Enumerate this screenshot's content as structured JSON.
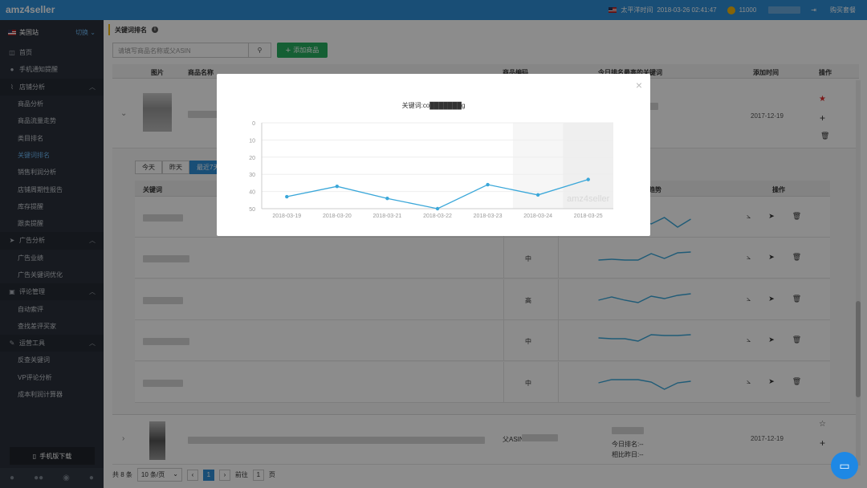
{
  "app": {
    "logo": "amz4seller"
  },
  "topbar": {
    "timezone_label": "太平洋时间",
    "datetime": "2018-03-26 02:41:47",
    "coins": "11000",
    "buy_label": "购买套餐"
  },
  "sidebar": {
    "site": "美国站",
    "switch_label": "切换",
    "items": [
      {
        "label": "首页",
        "icon": "home-icon",
        "glyph": "◫",
        "type": "top"
      },
      {
        "label": "手机通知提醒",
        "icon": "chat-icon",
        "glyph": "●",
        "type": "top"
      },
      {
        "label": "店铺分析",
        "icon": "chart-icon",
        "glyph": "⌇",
        "type": "section"
      },
      {
        "label": "商品分析",
        "type": "sub"
      },
      {
        "label": "商品流量走势",
        "type": "sub"
      },
      {
        "label": "类目排名",
        "type": "sub"
      },
      {
        "label": "关键词排名",
        "type": "sub",
        "active": true
      },
      {
        "label": "销售利润分析",
        "type": "sub"
      },
      {
        "label": "店铺周期性报告",
        "type": "sub"
      },
      {
        "label": "库存提醒",
        "type": "sub"
      },
      {
        "label": "跟卖提醒",
        "type": "sub"
      },
      {
        "label": "广告分析",
        "icon": "send-icon",
        "glyph": "➤",
        "type": "section"
      },
      {
        "label": "广告业绩",
        "type": "sub"
      },
      {
        "label": "广告关键词优化",
        "type": "sub"
      },
      {
        "label": "评论管理",
        "icon": "store-icon",
        "glyph": "▣",
        "type": "section"
      },
      {
        "label": "自动索评",
        "type": "sub"
      },
      {
        "label": "查找差评买家",
        "type": "sub"
      },
      {
        "label": "运营工具",
        "icon": "wrench-icon",
        "glyph": "✎",
        "type": "section"
      },
      {
        "label": "反查关键词",
        "type": "sub"
      },
      {
        "label": "VP评论分析",
        "type": "sub"
      },
      {
        "label": "成本利润计算器",
        "type": "sub"
      }
    ],
    "app_download": "手机版下载"
  },
  "main": {
    "title": "关键词排名",
    "search_placeholder": "请填写商品名称或父ASIN",
    "add_button": "添加商品",
    "columns": {
      "image": "图片",
      "name": "商品名称",
      "code": "商品编码",
      "keywords": "今日排名最高的关键词",
      "added": "添加时间",
      "ops": "操作"
    },
    "products": [
      {
        "added": "2017-12-19"
      },
      {
        "added": "2017-12-19",
        "code_prefix": "父ASIN",
        "today_rank": "今日排名:--",
        "compare": "相比昨日:--"
      }
    ],
    "range_tabs": [
      "今天",
      "昨天",
      "最近7天"
    ],
    "kw_columns": {
      "keyword": "关键词",
      "trend": "趋势",
      "ops": "操作"
    },
    "kw_rows": [
      {
        "level": "",
        "spark": [
          14,
          14,
          15,
          15,
          22,
          14,
          26,
          16
        ]
      },
      {
        "level": "中",
        "spark": [
          16,
          15,
          16,
          16,
          8,
          14,
          7,
          6
        ]
      },
      {
        "level": "高",
        "spark": [
          14,
          10,
          14,
          17,
          9,
          12,
          8,
          6
        ]
      },
      {
        "level": "中",
        "spark": [
          10,
          11,
          11,
          14,
          6,
          7,
          7,
          6
        ]
      },
      {
        "level": "中",
        "spark": [
          14,
          10,
          10,
          10,
          13,
          22,
          14,
          12
        ]
      }
    ],
    "pager": {
      "total": "共 8 条",
      "per_page": "10 条/页",
      "current": "1",
      "goto": "前往",
      "page_unit": "页"
    }
  },
  "modal": {
    "title": "关键词:co███████g",
    "watermark": "amz4seller",
    "chart_data": {
      "type": "line",
      "title": "关键词:co███████g",
      "xlabel": "",
      "ylabel": "",
      "categories": [
        "2018-03-19",
        "2018-03-20",
        "2018-03-21",
        "2018-03-22",
        "2018-03-23",
        "2018-03-24",
        "2018-03-25"
      ],
      "series": [
        {
          "values": [
            43,
            37,
            44,
            50,
            36,
            42,
            33
          ]
        }
      ],
      "ylim": [
        0,
        50
      ],
      "yticks": [
        0,
        10,
        20,
        30,
        40,
        50
      ],
      "y_inverted": true,
      "grid": true,
      "color": "#3aa7d9"
    }
  }
}
